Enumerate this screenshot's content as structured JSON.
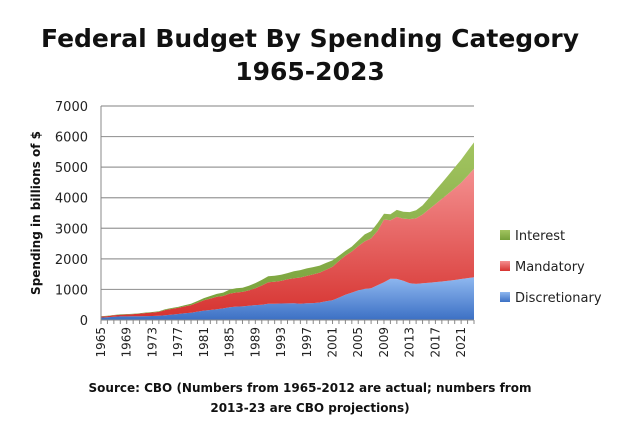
{
  "chart_data": {
    "type": "area",
    "stacked": true,
    "title": [
      "Federal Budget By Spending Category",
      "1965-2023"
    ],
    "xlabel": "",
    "ylabel": "Spending in billions of $",
    "ylim": [
      0,
      7000
    ],
    "yticks": [
      0,
      1000,
      2000,
      3000,
      4000,
      5000,
      6000,
      7000
    ],
    "xticks": [
      1965,
      1969,
      1973,
      1977,
      1981,
      1985,
      1989,
      1993,
      1997,
      2001,
      2005,
      2009,
      2013,
      2017,
      2021
    ],
    "grid": "horizontal",
    "legend": "right",
    "x_start": 1965,
    "x_end": 2023,
    "series": [
      {
        "name": "Discretionary",
        "color": "#4a80d0",
        "values": [
          77,
          90,
          106,
          118,
          117,
          120,
          122,
          129,
          130,
          139,
          158,
          175,
          197,
          218,
          240,
          276,
          308,
          326,
          353,
          380,
          416,
          439,
          445,
          464,
          489,
          501,
          533,
          534,
          540,
          544,
          545,
          533,
          547,
          552,
          572,
          615,
          649,
          734,
          825,
          895,
          968,
          1016,
          1041,
          1135,
          1237,
          1347,
          1346,
          1285,
          1200,
          1180,
          1200,
          1220,
          1240,
          1260,
          1285,
          1310,
          1340,
          1370,
          1400
        ]
      },
      {
        "name": "Mandatory",
        "color": "#e0403c",
        "values": [
          36,
          39,
          47,
          56,
          64,
          72,
          86,
          100,
          114,
          127,
          169,
          189,
          203,
          228,
          248,
          291,
          340,
          373,
          410,
          405,
          448,
          461,
          474,
          505,
          549,
          626,
          703,
          717,
          738,
          786,
          818,
          858,
          896,
          939,
          977,
          1029,
          1095,
          1196,
          1283,
          1346,
          1448,
          1556,
          1628,
          1780,
          2050,
          1913,
          2025,
          2031,
          2100,
          2150,
          2250,
          2400,
          2550,
          2700,
          2850,
          3000,
          3150,
          3350,
          3550
        ]
      },
      {
        "name": "Interest",
        "color": "#86ac45",
        "values": [
          9,
          10,
          11,
          12,
          13,
          14,
          15,
          16,
          17,
          21,
          23,
          27,
          30,
          35,
          43,
          53,
          69,
          85,
          90,
          111,
          130,
          136,
          139,
          152,
          169,
          184,
          194,
          199,
          199,
          203,
          232,
          241,
          244,
          241,
          230,
          223,
          206,
          171,
          153,
          160,
          184,
          227,
          237,
          253,
          187,
          196,
          230,
          224,
          230,
          260,
          300,
          370,
          450,
          520,
          600,
          680,
          750,
          810,
          860
        ]
      }
    ],
    "legend_order": [
      "Interest",
      "Mandatory",
      "Discretionary"
    ]
  },
  "source": {
    "line1": "Source: CBO (Numbers from 1965-2012 are actual; numbers from",
    "line2": "2013-23 are CBO projections)"
  }
}
